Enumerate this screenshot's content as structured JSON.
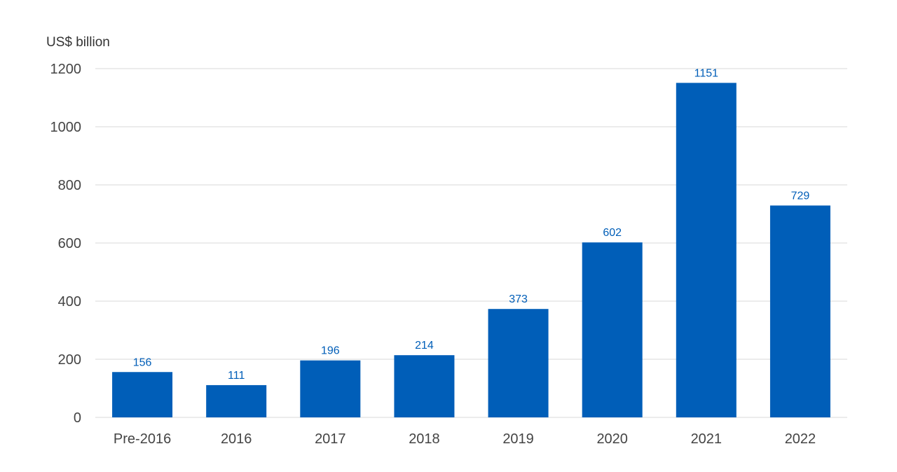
{
  "chart_data": {
    "type": "bar",
    "ylabel": "US$ billion",
    "categories": [
      "Pre-2016",
      "2016",
      "2017",
      "2018",
      "2019",
      "2020",
      "2021",
      "2022"
    ],
    "values": [
      156,
      111,
      196,
      214,
      373,
      602,
      1151,
      729
    ],
    "data_labels": [
      "156",
      "111",
      "196",
      "214",
      "373",
      "602",
      "1151",
      "729"
    ],
    "yticks": [
      "0",
      "200",
      "400",
      "600",
      "800",
      "1000",
      "1200"
    ],
    "ylim": [
      0,
      1200
    ],
    "grid": true,
    "colors": {
      "bar": "#005EB8",
      "label": "#005EB8"
    }
  }
}
